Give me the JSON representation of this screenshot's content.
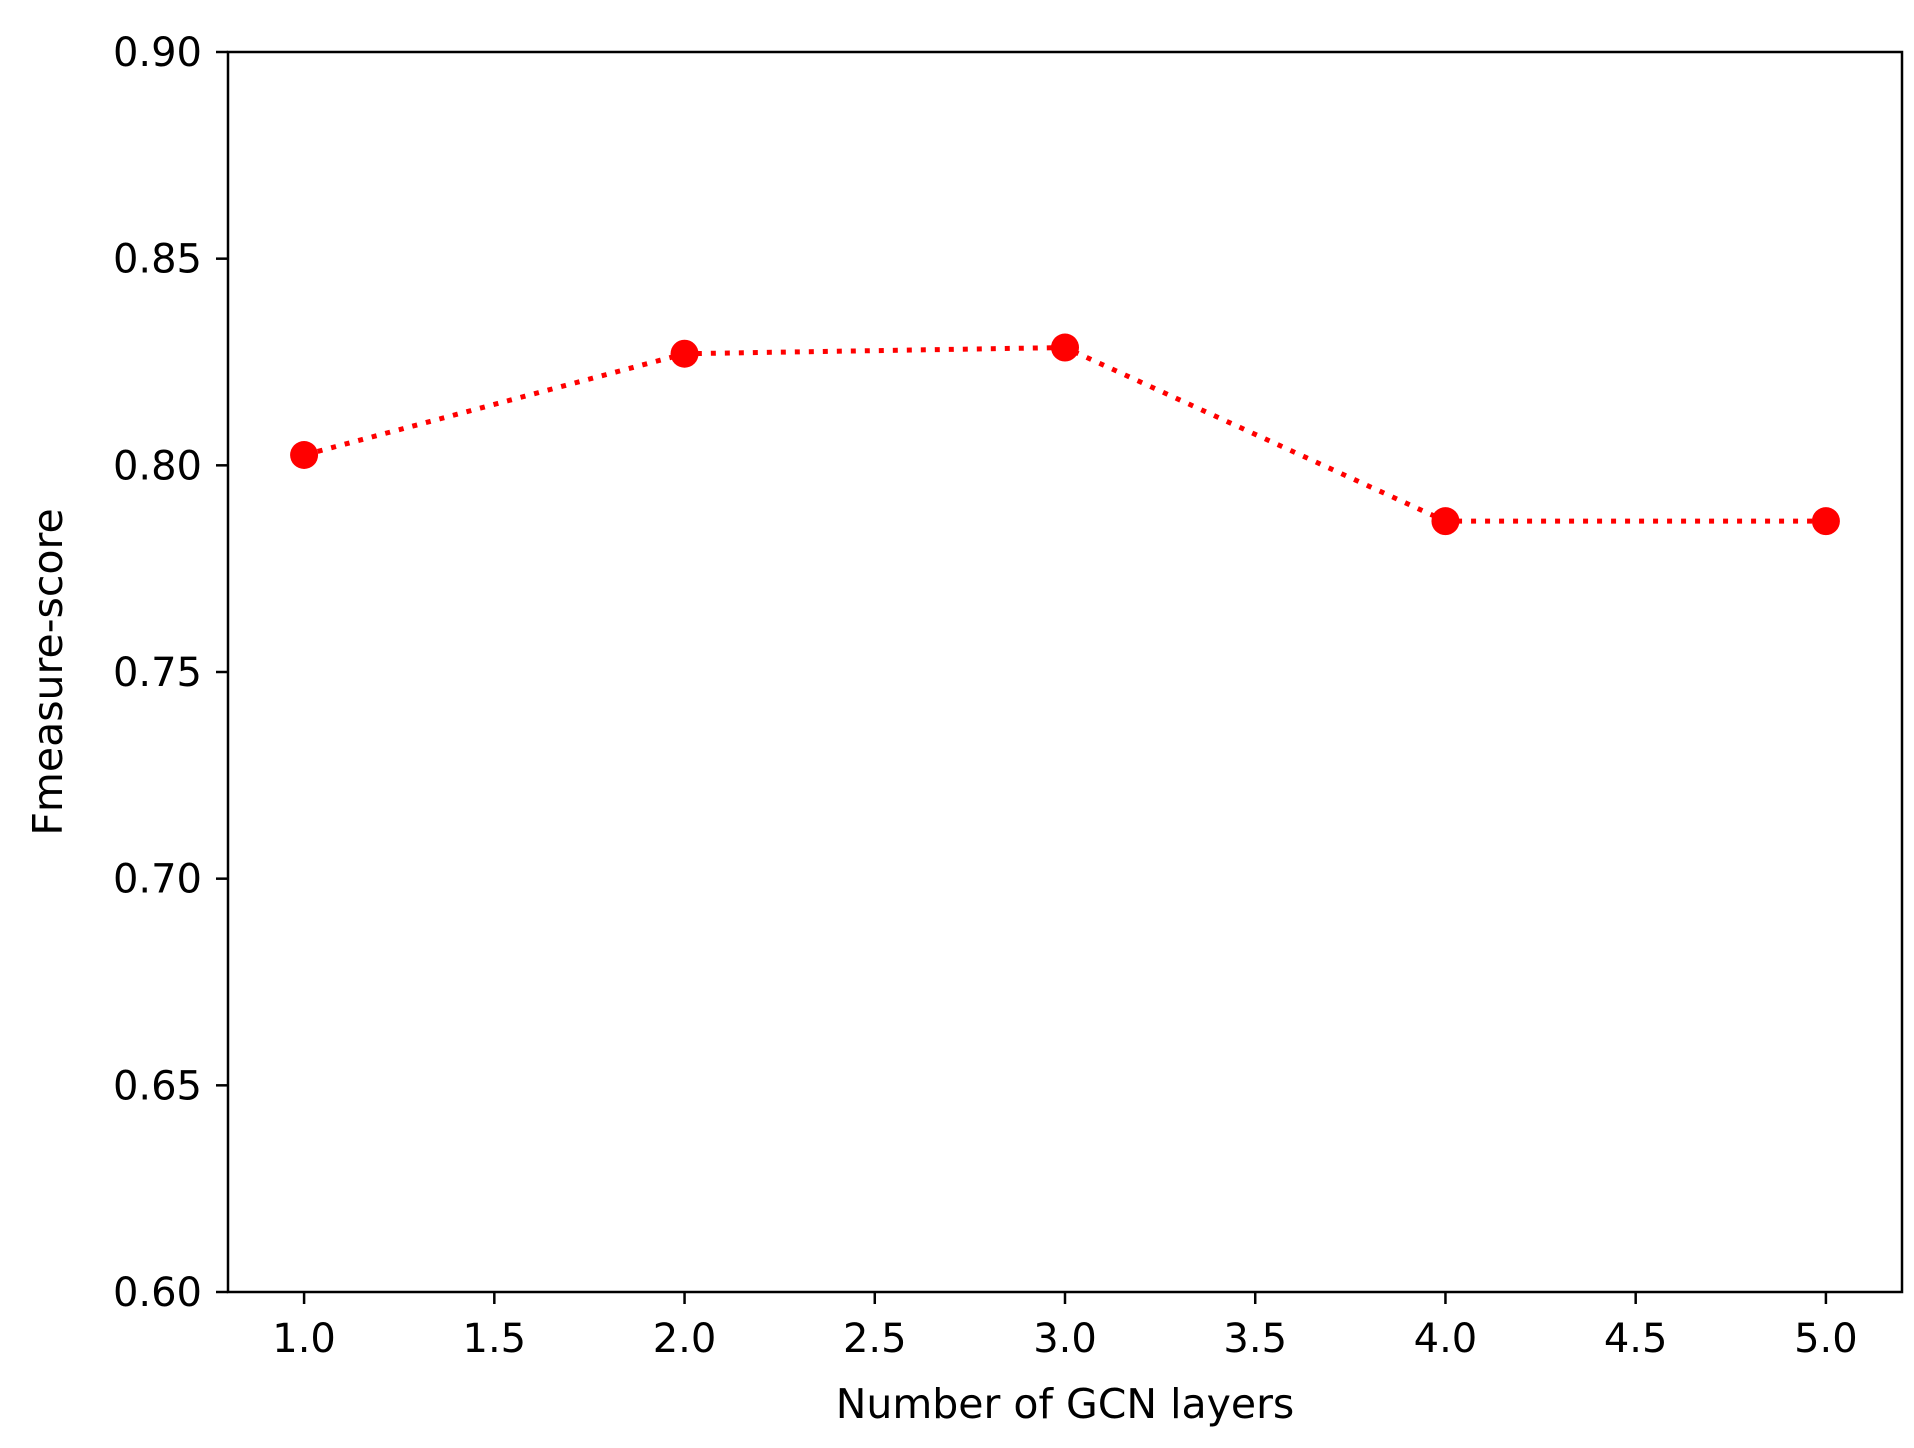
{
  "chart_data": {
    "type": "line",
    "title": "",
    "xlabel": "Number of GCN layers",
    "ylabel": "Fmeasure-score",
    "xlim": [
      0.8,
      5.2
    ],
    "ylim": [
      0.6,
      0.9
    ],
    "x_ticks": [
      "1.0",
      "1.5",
      "2.0",
      "2.5",
      "3.0",
      "3.5",
      "4.0",
      "4.5",
      "5.0"
    ],
    "y_ticks": [
      "0.60",
      "0.65",
      "0.70",
      "0.75",
      "0.80",
      "0.85",
      "0.90"
    ],
    "grid": false,
    "series": [
      {
        "x": [
          1.0,
          2.0,
          3.0,
          4.0,
          5.0
        ],
        "y": [
          0.8025,
          0.827,
          0.8285,
          0.7865,
          0.7865
        ],
        "color": "#ff0000",
        "line_style": "dotted",
        "marker": "circle"
      }
    ]
  }
}
